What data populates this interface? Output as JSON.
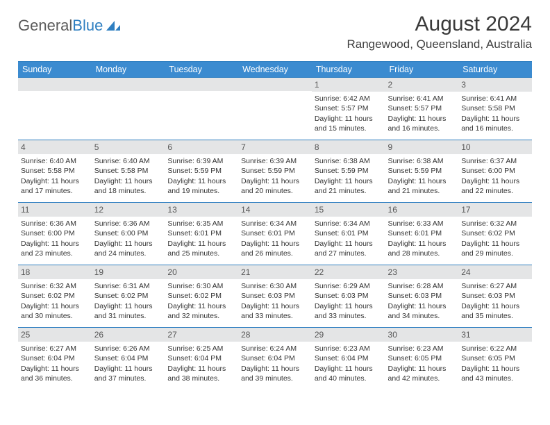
{
  "logo": {
    "text_gray": "General",
    "text_blue": "Blue"
  },
  "title": "August 2024",
  "location": "Rangewood, Queensland, Australia",
  "colors": {
    "header_bg": "#3b8bd0",
    "header_text": "#ffffff",
    "rule": "#2f7fc1",
    "daynum_bg": "#e4e5e6",
    "body_text": "#333333",
    "logo_gray": "#5b5b5b",
    "logo_blue": "#2f7fc1"
  },
  "day_headers": [
    "Sunday",
    "Monday",
    "Tuesday",
    "Wednesday",
    "Thursday",
    "Friday",
    "Saturday"
  ],
  "weeks": [
    [
      null,
      null,
      null,
      null,
      {
        "n": "1",
        "sr": "6:42 AM",
        "ss": "5:57 PM",
        "dl": "11 hours and 15 minutes."
      },
      {
        "n": "2",
        "sr": "6:41 AM",
        "ss": "5:57 PM",
        "dl": "11 hours and 16 minutes."
      },
      {
        "n": "3",
        "sr": "6:41 AM",
        "ss": "5:58 PM",
        "dl": "11 hours and 16 minutes."
      }
    ],
    [
      {
        "n": "4",
        "sr": "6:40 AM",
        "ss": "5:58 PM",
        "dl": "11 hours and 17 minutes."
      },
      {
        "n": "5",
        "sr": "6:40 AM",
        "ss": "5:58 PM",
        "dl": "11 hours and 18 minutes."
      },
      {
        "n": "6",
        "sr": "6:39 AM",
        "ss": "5:59 PM",
        "dl": "11 hours and 19 minutes."
      },
      {
        "n": "7",
        "sr": "6:39 AM",
        "ss": "5:59 PM",
        "dl": "11 hours and 20 minutes."
      },
      {
        "n": "8",
        "sr": "6:38 AM",
        "ss": "5:59 PM",
        "dl": "11 hours and 21 minutes."
      },
      {
        "n": "9",
        "sr": "6:38 AM",
        "ss": "5:59 PM",
        "dl": "11 hours and 21 minutes."
      },
      {
        "n": "10",
        "sr": "6:37 AM",
        "ss": "6:00 PM",
        "dl": "11 hours and 22 minutes."
      }
    ],
    [
      {
        "n": "11",
        "sr": "6:36 AM",
        "ss": "6:00 PM",
        "dl": "11 hours and 23 minutes."
      },
      {
        "n": "12",
        "sr": "6:36 AM",
        "ss": "6:00 PM",
        "dl": "11 hours and 24 minutes."
      },
      {
        "n": "13",
        "sr": "6:35 AM",
        "ss": "6:01 PM",
        "dl": "11 hours and 25 minutes."
      },
      {
        "n": "14",
        "sr": "6:34 AM",
        "ss": "6:01 PM",
        "dl": "11 hours and 26 minutes."
      },
      {
        "n": "15",
        "sr": "6:34 AM",
        "ss": "6:01 PM",
        "dl": "11 hours and 27 minutes."
      },
      {
        "n": "16",
        "sr": "6:33 AM",
        "ss": "6:01 PM",
        "dl": "11 hours and 28 minutes."
      },
      {
        "n": "17",
        "sr": "6:32 AM",
        "ss": "6:02 PM",
        "dl": "11 hours and 29 minutes."
      }
    ],
    [
      {
        "n": "18",
        "sr": "6:32 AM",
        "ss": "6:02 PM",
        "dl": "11 hours and 30 minutes."
      },
      {
        "n": "19",
        "sr": "6:31 AM",
        "ss": "6:02 PM",
        "dl": "11 hours and 31 minutes."
      },
      {
        "n": "20",
        "sr": "6:30 AM",
        "ss": "6:02 PM",
        "dl": "11 hours and 32 minutes."
      },
      {
        "n": "21",
        "sr": "6:30 AM",
        "ss": "6:03 PM",
        "dl": "11 hours and 33 minutes."
      },
      {
        "n": "22",
        "sr": "6:29 AM",
        "ss": "6:03 PM",
        "dl": "11 hours and 33 minutes."
      },
      {
        "n": "23",
        "sr": "6:28 AM",
        "ss": "6:03 PM",
        "dl": "11 hours and 34 minutes."
      },
      {
        "n": "24",
        "sr": "6:27 AM",
        "ss": "6:03 PM",
        "dl": "11 hours and 35 minutes."
      }
    ],
    [
      {
        "n": "25",
        "sr": "6:27 AM",
        "ss": "6:04 PM",
        "dl": "11 hours and 36 minutes."
      },
      {
        "n": "26",
        "sr": "6:26 AM",
        "ss": "6:04 PM",
        "dl": "11 hours and 37 minutes."
      },
      {
        "n": "27",
        "sr": "6:25 AM",
        "ss": "6:04 PM",
        "dl": "11 hours and 38 minutes."
      },
      {
        "n": "28",
        "sr": "6:24 AM",
        "ss": "6:04 PM",
        "dl": "11 hours and 39 minutes."
      },
      {
        "n": "29",
        "sr": "6:23 AM",
        "ss": "6:04 PM",
        "dl": "11 hours and 40 minutes."
      },
      {
        "n": "30",
        "sr": "6:23 AM",
        "ss": "6:05 PM",
        "dl": "11 hours and 42 minutes."
      },
      {
        "n": "31",
        "sr": "6:22 AM",
        "ss": "6:05 PM",
        "dl": "11 hours and 43 minutes."
      }
    ]
  ],
  "labels": {
    "sunrise": "Sunrise: ",
    "sunset": "Sunset: ",
    "daylight": "Daylight: "
  }
}
